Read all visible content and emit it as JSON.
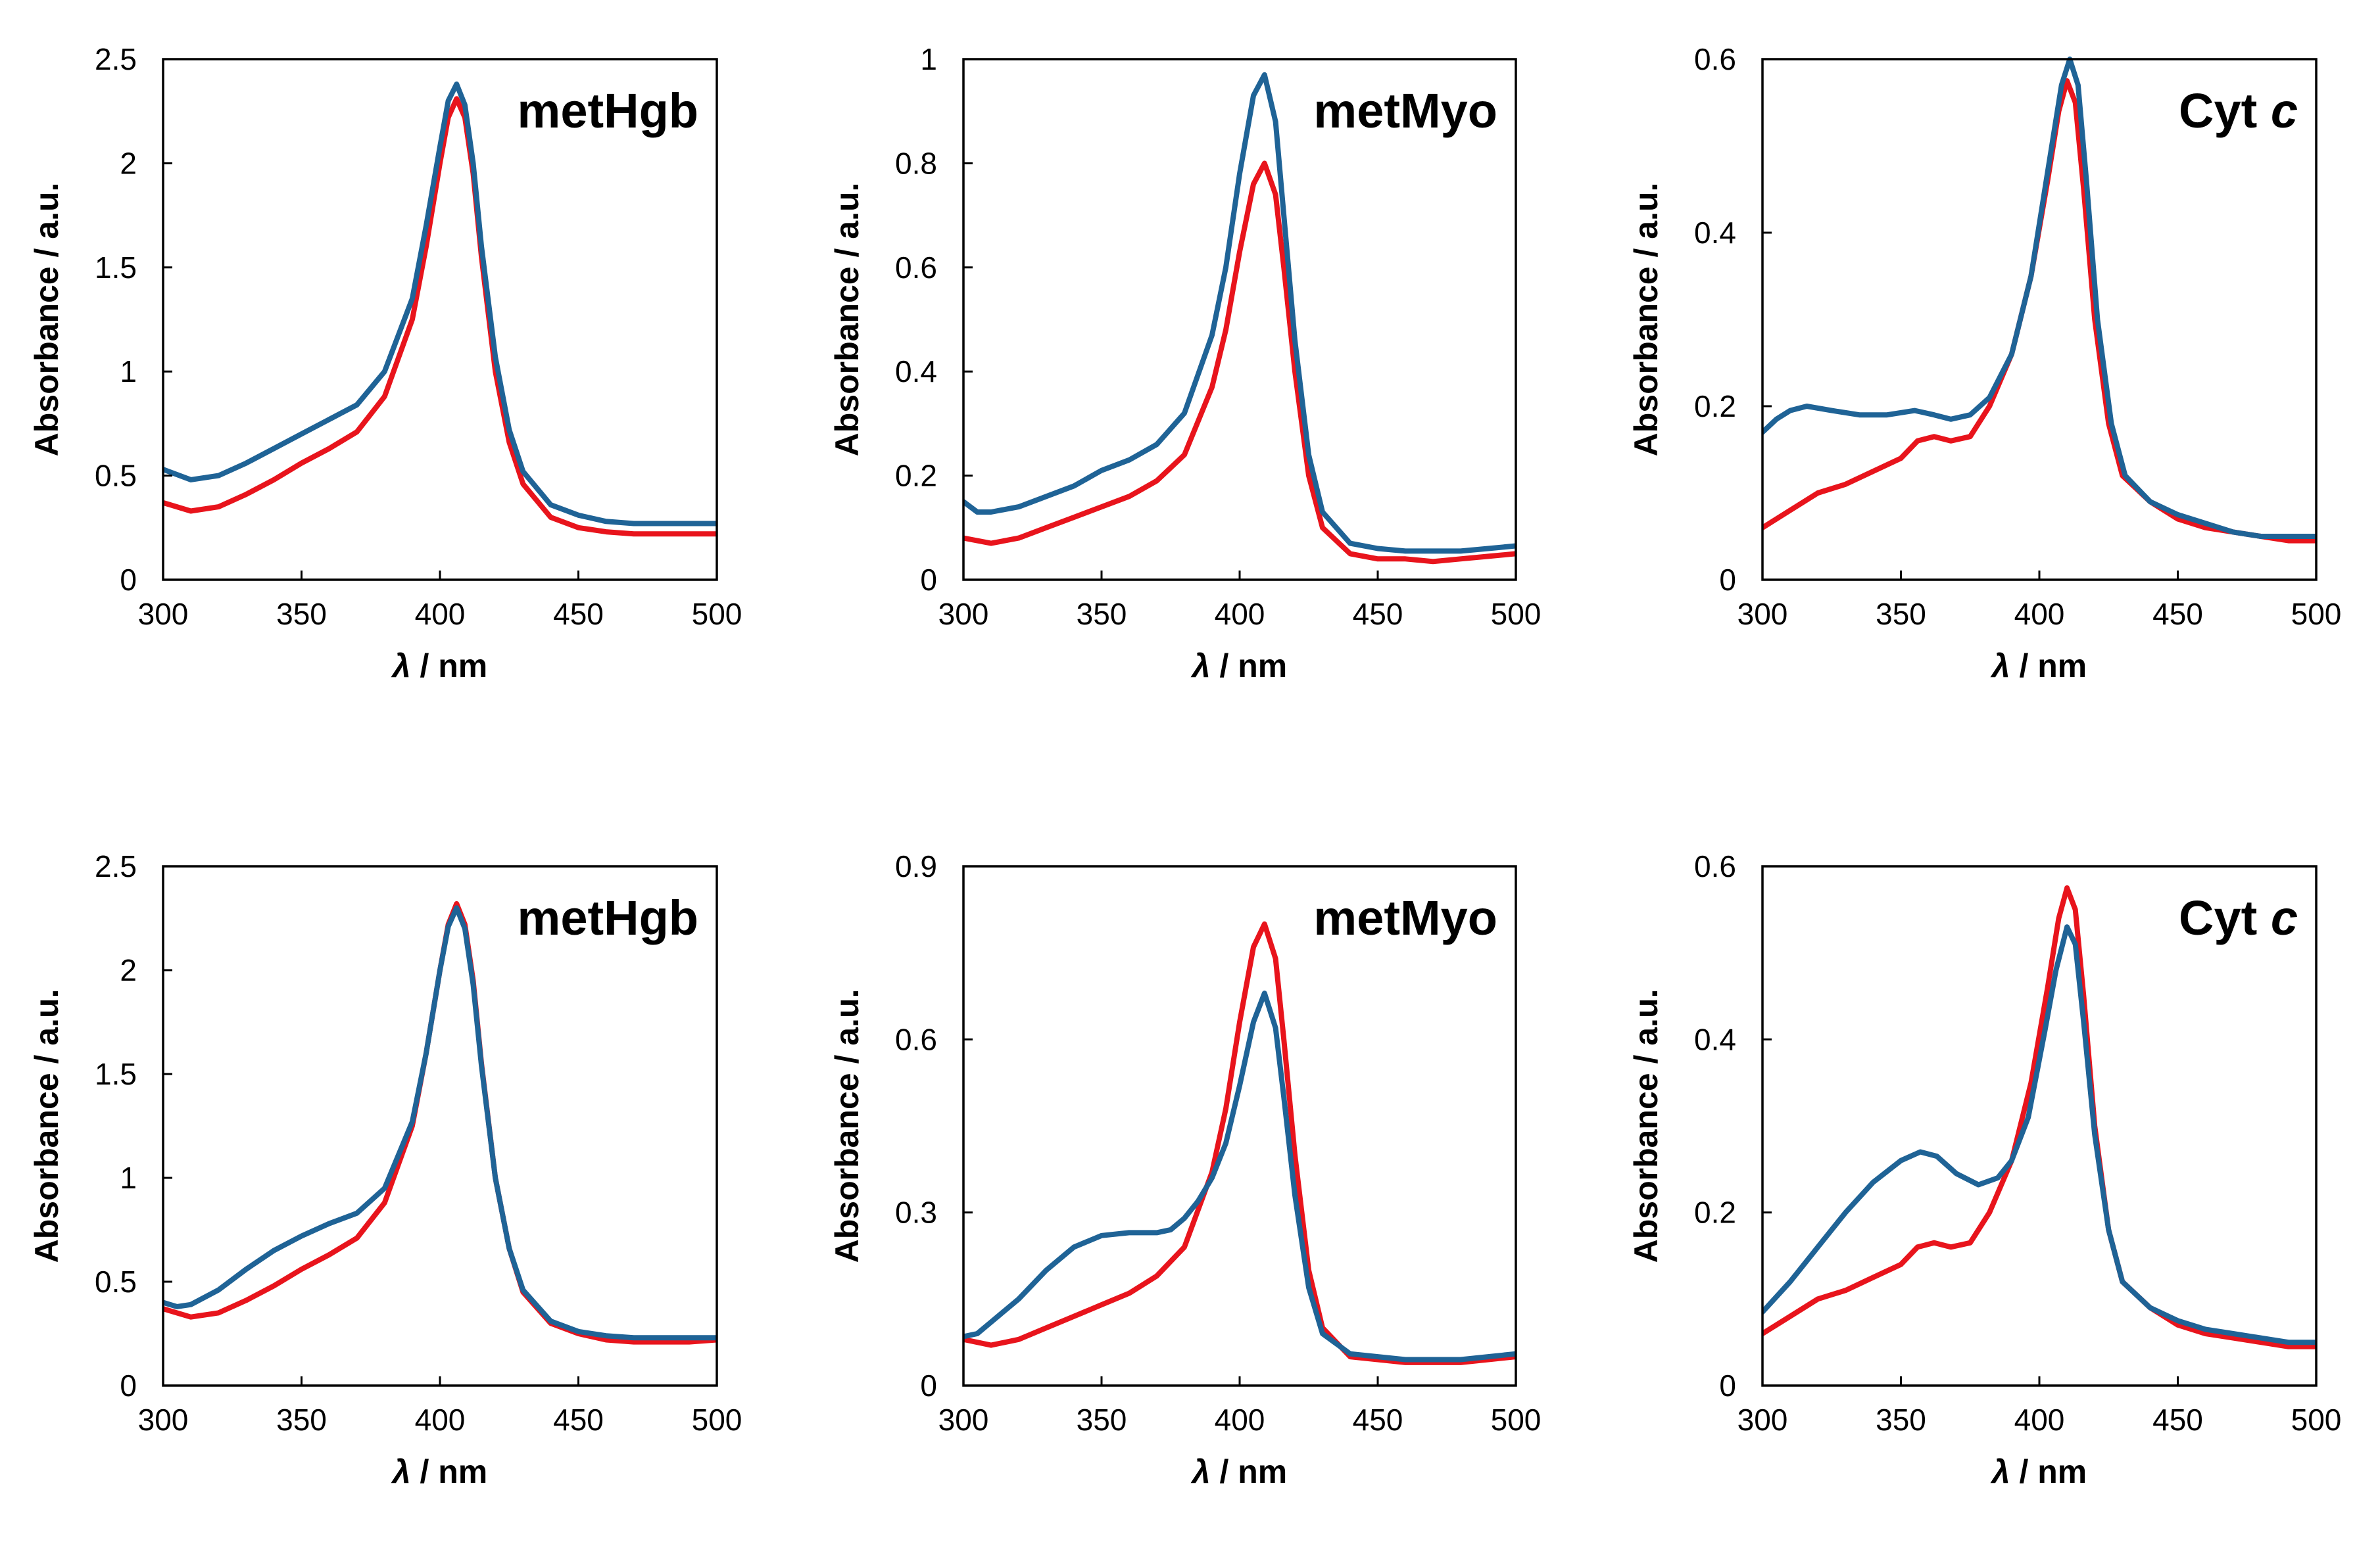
{
  "chart_data": [
    {
      "type": "line",
      "title": "metHgb",
      "title_italic_part": "",
      "xlabel_symbol": "λ",
      "xlabel": "/ nm",
      "ylabel": "Absorbance / a.u.",
      "xlim": [
        300,
        500
      ],
      "ylim": [
        0,
        2.5
      ],
      "xticks": [
        300,
        350,
        400,
        450,
        500
      ],
      "yticks": [
        0,
        0.5,
        1,
        1.5,
        2,
        2.5
      ],
      "xtick_labels": [
        "300",
        "350",
        "400",
        "450",
        "500"
      ],
      "ytick_labels": [
        "0",
        "0.5",
        "1",
        "1.5",
        "2",
        "2.5"
      ],
      "series": [
        {
          "name": "red",
          "color": "#e8141c",
          "x": [
            300,
            310,
            320,
            330,
            340,
            350,
            360,
            370,
            380,
            390,
            395,
            400,
            403,
            406,
            409,
            412,
            415,
            420,
            425,
            430,
            440,
            450,
            460,
            470,
            480,
            490,
            500
          ],
          "y": [
            0.37,
            0.33,
            0.35,
            0.41,
            0.48,
            0.56,
            0.63,
            0.71,
            0.88,
            1.25,
            1.6,
            2.0,
            2.22,
            2.31,
            2.22,
            1.95,
            1.55,
            1.0,
            0.66,
            0.46,
            0.3,
            0.25,
            0.23,
            0.22,
            0.22,
            0.22,
            0.22
          ]
        },
        {
          "name": "blue",
          "color": "#1f6396",
          "x": [
            300,
            310,
            320,
            330,
            340,
            350,
            360,
            370,
            380,
            390,
            395,
            400,
            403,
            406,
            409,
            412,
            415,
            420,
            425,
            430,
            440,
            450,
            460,
            470,
            480,
            490,
            500
          ],
          "y": [
            0.53,
            0.48,
            0.5,
            0.56,
            0.63,
            0.7,
            0.77,
            0.84,
            1.0,
            1.35,
            1.7,
            2.08,
            2.3,
            2.38,
            2.28,
            2.0,
            1.6,
            1.07,
            0.72,
            0.52,
            0.36,
            0.31,
            0.28,
            0.27,
            0.27,
            0.27,
            0.27
          ]
        }
      ]
    },
    {
      "type": "line",
      "title": "metMyo",
      "title_italic_part": "",
      "xlabel_symbol": "λ",
      "xlabel": "/ nm",
      "ylabel": "Absorbance / a.u.",
      "xlim": [
        300,
        500
      ],
      "ylim": [
        0,
        1
      ],
      "xticks": [
        300,
        350,
        400,
        450,
        500
      ],
      "yticks": [
        0,
        0.2,
        0.4,
        0.6,
        0.8,
        1
      ],
      "xtick_labels": [
        "300",
        "350",
        "400",
        "450",
        "500"
      ],
      "ytick_labels": [
        "0",
        "0.2",
        "0.4",
        "0.6",
        "0.8",
        "1"
      ],
      "series": [
        {
          "name": "red",
          "color": "#e8141c",
          "x": [
            300,
            310,
            320,
            330,
            340,
            350,
            360,
            370,
            380,
            390,
            395,
            400,
            405,
            409,
            413,
            416,
            420,
            425,
            430,
            440,
            450,
            460,
            470,
            480,
            490,
            500
          ],
          "y": [
            0.08,
            0.07,
            0.08,
            0.1,
            0.12,
            0.14,
            0.16,
            0.19,
            0.24,
            0.37,
            0.48,
            0.63,
            0.76,
            0.8,
            0.74,
            0.6,
            0.4,
            0.2,
            0.1,
            0.05,
            0.04,
            0.04,
            0.035,
            0.04,
            0.045,
            0.05
          ]
        },
        {
          "name": "blue",
          "color": "#1f6396",
          "x": [
            300,
            305,
            310,
            320,
            330,
            340,
            350,
            360,
            370,
            380,
            390,
            395,
            400,
            405,
            409,
            413,
            416,
            420,
            425,
            430,
            440,
            450,
            460,
            470,
            480,
            490,
            500
          ],
          "y": [
            0.15,
            0.13,
            0.13,
            0.14,
            0.16,
            0.18,
            0.21,
            0.23,
            0.26,
            0.32,
            0.47,
            0.6,
            0.78,
            0.93,
            0.97,
            0.88,
            0.7,
            0.46,
            0.24,
            0.13,
            0.07,
            0.06,
            0.055,
            0.055,
            0.055,
            0.06,
            0.065
          ]
        }
      ]
    },
    {
      "type": "line",
      "title": "Cyt ",
      "title_italic_part": "c",
      "xlabel_symbol": "λ",
      "xlabel": "/ nm",
      "ylabel": "Absorbance / a.u.",
      "xlim": [
        300,
        500
      ],
      "ylim": [
        0,
        0.6
      ],
      "xticks": [
        300,
        350,
        400,
        450,
        500
      ],
      "yticks": [
        0,
        0.2,
        0.4,
        0.6
      ],
      "xtick_labels": [
        "300",
        "350",
        "400",
        "450",
        "500"
      ],
      "ytick_labels": [
        "0",
        "0.2",
        "0.4",
        "0.6"
      ],
      "series": [
        {
          "name": "red",
          "color": "#e8141c",
          "x": [
            300,
            310,
            320,
            330,
            340,
            350,
            356,
            362,
            368,
            375,
            382,
            390,
            397,
            403,
            407,
            410,
            413,
            416,
            420,
            425,
            430,
            440,
            450,
            460,
            470,
            480,
            490,
            500
          ],
          "y": [
            0.06,
            0.08,
            0.1,
            0.11,
            0.125,
            0.14,
            0.16,
            0.165,
            0.16,
            0.165,
            0.2,
            0.26,
            0.35,
            0.46,
            0.54,
            0.575,
            0.55,
            0.45,
            0.3,
            0.18,
            0.12,
            0.09,
            0.07,
            0.06,
            0.055,
            0.05,
            0.045,
            0.045
          ]
        },
        {
          "name": "blue",
          "color": "#1f6396",
          "x": [
            300,
            305,
            310,
            316,
            325,
            335,
            345,
            355,
            362,
            368,
            375,
            382,
            390,
            397,
            403,
            408,
            411,
            414,
            417,
            421,
            426,
            431,
            440,
            450,
            460,
            470,
            480,
            490,
            500
          ],
          "y": [
            0.17,
            0.185,
            0.195,
            0.2,
            0.195,
            0.19,
            0.19,
            0.195,
            0.19,
            0.185,
            0.19,
            0.21,
            0.26,
            0.35,
            0.47,
            0.57,
            0.6,
            0.57,
            0.46,
            0.3,
            0.18,
            0.12,
            0.09,
            0.075,
            0.065,
            0.055,
            0.05,
            0.05,
            0.05
          ]
        }
      ]
    },
    {
      "type": "line",
      "title": "metHgb",
      "title_italic_part": "",
      "xlabel_symbol": "λ",
      "xlabel": "/ nm",
      "ylabel": "Absorbance / a.u.",
      "xlim": [
        300,
        500
      ],
      "ylim": [
        0,
        2.5
      ],
      "xticks": [
        300,
        350,
        400,
        450,
        500
      ],
      "yticks": [
        0,
        0.5,
        1,
        1.5,
        2,
        2.5
      ],
      "xtick_labels": [
        "300",
        "350",
        "400",
        "450",
        "500"
      ],
      "ytick_labels": [
        "0",
        "0.5",
        "1",
        "1.5",
        "2",
        "2.5"
      ],
      "series": [
        {
          "name": "red",
          "color": "#e8141c",
          "x": [
            300,
            310,
            320,
            330,
            340,
            350,
            360,
            370,
            380,
            390,
            395,
            400,
            403,
            406,
            409,
            412,
            415,
            420,
            425,
            430,
            440,
            450,
            460,
            470,
            480,
            490,
            500
          ],
          "y": [
            0.37,
            0.33,
            0.35,
            0.41,
            0.48,
            0.56,
            0.63,
            0.71,
            0.88,
            1.25,
            1.6,
            2.0,
            2.22,
            2.32,
            2.22,
            1.95,
            1.55,
            1.0,
            0.66,
            0.45,
            0.3,
            0.25,
            0.22,
            0.21,
            0.21,
            0.21,
            0.22
          ]
        },
        {
          "name": "blue",
          "color": "#1f6396",
          "x": [
            300,
            305,
            310,
            320,
            330,
            340,
            350,
            360,
            370,
            380,
            390,
            395,
            400,
            403,
            406,
            409,
            412,
            415,
            420,
            425,
            430,
            440,
            450,
            460,
            470,
            480,
            490,
            500
          ],
          "y": [
            0.4,
            0.38,
            0.39,
            0.46,
            0.56,
            0.65,
            0.72,
            0.78,
            0.83,
            0.95,
            1.27,
            1.6,
            2.0,
            2.21,
            2.3,
            2.2,
            1.93,
            1.54,
            1.0,
            0.66,
            0.46,
            0.31,
            0.26,
            0.24,
            0.23,
            0.23,
            0.23,
            0.23
          ]
        }
      ]
    },
    {
      "type": "line",
      "title": "metMyo",
      "title_italic_part": "",
      "xlabel_symbol": "λ",
      "xlabel": "/ nm",
      "ylabel": "Absorbance / a.u.",
      "xlim": [
        300,
        500
      ],
      "ylim": [
        0,
        0.9
      ],
      "xticks": [
        300,
        350,
        400,
        450,
        500
      ],
      "yticks": [
        0,
        0.3,
        0.6,
        0.9
      ],
      "xtick_labels": [
        "300",
        "350",
        "400",
        "450",
        "500"
      ],
      "ytick_labels": [
        "0",
        "0.3",
        "0.6",
        "0.9"
      ],
      "series": [
        {
          "name": "red",
          "color": "#e8141c",
          "x": [
            300,
            310,
            320,
            330,
            340,
            350,
            360,
            370,
            380,
            390,
            395,
            400,
            405,
            409,
            413,
            416,
            420,
            425,
            430,
            440,
            450,
            460,
            470,
            480,
            490,
            500
          ],
          "y": [
            0.08,
            0.07,
            0.08,
            0.1,
            0.12,
            0.14,
            0.16,
            0.19,
            0.24,
            0.37,
            0.48,
            0.63,
            0.76,
            0.8,
            0.74,
            0.6,
            0.4,
            0.2,
            0.1,
            0.05,
            0.045,
            0.04,
            0.04,
            0.04,
            0.045,
            0.05
          ]
        },
        {
          "name": "blue",
          "color": "#1f6396",
          "x": [
            300,
            305,
            310,
            320,
            330,
            340,
            350,
            360,
            370,
            375,
            380,
            385,
            390,
            395,
            400,
            405,
            409,
            413,
            416,
            420,
            425,
            430,
            440,
            450,
            460,
            470,
            480,
            490,
            500
          ],
          "y": [
            0.085,
            0.09,
            0.11,
            0.15,
            0.2,
            0.24,
            0.26,
            0.265,
            0.265,
            0.27,
            0.29,
            0.32,
            0.36,
            0.42,
            0.52,
            0.63,
            0.68,
            0.62,
            0.5,
            0.33,
            0.17,
            0.09,
            0.055,
            0.05,
            0.045,
            0.045,
            0.045,
            0.05,
            0.055
          ]
        }
      ]
    },
    {
      "type": "line",
      "title": "Cyt ",
      "title_italic_part": "c",
      "xlabel_symbol": "λ",
      "xlabel": "/ nm",
      "ylabel": "Absorbance / a.u.",
      "xlim": [
        300,
        500
      ],
      "ylim": [
        0,
        0.6
      ],
      "xticks": [
        300,
        350,
        400,
        450,
        500
      ],
      "yticks": [
        0,
        0.2,
        0.4,
        0.6
      ],
      "xtick_labels": [
        "300",
        "350",
        "400",
        "450",
        "500"
      ],
      "ytick_labels": [
        "0",
        "0.2",
        "0.4",
        "0.6"
      ],
      "series": [
        {
          "name": "red",
          "color": "#e8141c",
          "x": [
            300,
            310,
            320,
            330,
            340,
            350,
            356,
            362,
            368,
            375,
            382,
            390,
            397,
            403,
            407,
            410,
            413,
            416,
            420,
            425,
            430,
            440,
            450,
            460,
            470,
            480,
            490,
            500
          ],
          "y": [
            0.06,
            0.08,
            0.1,
            0.11,
            0.125,
            0.14,
            0.16,
            0.165,
            0.16,
            0.165,
            0.2,
            0.26,
            0.35,
            0.46,
            0.54,
            0.575,
            0.55,
            0.45,
            0.3,
            0.18,
            0.12,
            0.09,
            0.07,
            0.06,
            0.055,
            0.05,
            0.045,
            0.045
          ]
        },
        {
          "name": "blue",
          "color": "#1f6396",
          "x": [
            300,
            310,
            320,
            330,
            340,
            350,
            357,
            363,
            370,
            378,
            385,
            390,
            396,
            402,
            406,
            410,
            413,
            416,
            420,
            425,
            430,
            440,
            450,
            460,
            470,
            480,
            490,
            500
          ],
          "y": [
            0.085,
            0.12,
            0.16,
            0.2,
            0.235,
            0.26,
            0.27,
            0.265,
            0.245,
            0.232,
            0.24,
            0.26,
            0.31,
            0.41,
            0.48,
            0.53,
            0.51,
            0.42,
            0.29,
            0.18,
            0.12,
            0.09,
            0.075,
            0.065,
            0.06,
            0.055,
            0.05,
            0.05
          ]
        }
      ]
    }
  ]
}
